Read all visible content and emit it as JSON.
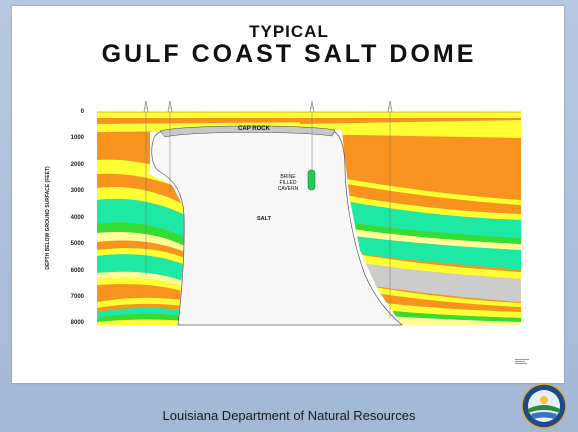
{
  "title_line1": "TYPICAL",
  "title_line2": "GULF COAST SALT DOME",
  "y_axis_label": "DEPTH BELOW GROUND SURFACE (FEET)",
  "depth_ticks": [
    "0",
    "1000",
    "2000",
    "3000",
    "4000",
    "5000",
    "6000",
    "7000",
    "8000"
  ],
  "labels": {
    "cap_rock": "CAP ROCK",
    "brine_line1": "BRINE",
    "brine_line2": "FILLED",
    "brine_line3": "CAVERN",
    "salt": "SALT"
  },
  "footer": "Louisiana Department of Natural Resources",
  "colors": {
    "orange": "#f7931e",
    "yellow": "#ffff33",
    "pale_yellow": "#ffff99",
    "teal": "#1de9a4",
    "green": "#33dd33",
    "gray": "#cccccc",
    "salt": "#f7f7f7",
    "background": "#b7c9e2"
  }
}
